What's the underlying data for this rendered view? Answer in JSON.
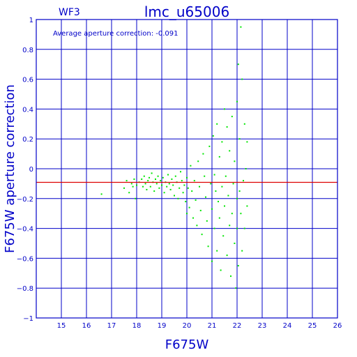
{
  "chart_data": {
    "type": "scatter",
    "title": "lmc_u65006",
    "corner_label": "WF3",
    "annotation": "Average aperture correction:  -0.091",
    "xlabel": "F675W",
    "ylabel": "F675W aperture correction",
    "xlim": [
      14,
      26
    ],
    "ylim": [
      -1,
      1
    ],
    "xticks": [
      15,
      16,
      17,
      18,
      19,
      20,
      21,
      22,
      23,
      24,
      25,
      26
    ],
    "yticks": [
      -1,
      -0.8,
      -0.6,
      -0.4,
      -0.2,
      0,
      0.2,
      0.4,
      0.6,
      0.8,
      1
    ],
    "ytick_labels": [
      "−1",
      "−0.8",
      "−0.6",
      "−0.4",
      "−0.2",
      "0",
      "0.2",
      "0.4",
      "0.6",
      "0.8",
      "1"
    ],
    "grid": true,
    "average_line": {
      "y": -0.091
    },
    "colors": {
      "axes": "#0000c8",
      "points": "#00e600",
      "average_line": "#dd0000"
    },
    "series": [
      {
        "points": [
          [
            16.6,
            -0.17
          ],
          [
            17.5,
            -0.13
          ],
          [
            17.6,
            -0.08
          ],
          [
            17.7,
            -0.16
          ],
          [
            17.8,
            -0.1
          ],
          [
            17.85,
            -0.12
          ],
          [
            17.9,
            -0.07
          ],
          [
            17.95,
            -0.2
          ],
          [
            18.0,
            -0.11
          ],
          [
            18.1,
            -0.09
          ],
          [
            18.2,
            -0.07
          ],
          [
            18.25,
            -0.12
          ],
          [
            18.3,
            -0.05
          ],
          [
            18.35,
            -0.1
          ],
          [
            18.4,
            -0.14
          ],
          [
            18.45,
            -0.08
          ],
          [
            18.5,
            -0.06
          ],
          [
            18.55,
            -0.12
          ],
          [
            18.6,
            -0.03
          ],
          [
            18.65,
            -0.09
          ],
          [
            18.7,
            -0.15
          ],
          [
            18.75,
            -0.07
          ],
          [
            18.8,
            -0.1
          ],
          [
            18.85,
            -0.05
          ],
          [
            18.9,
            -0.13
          ],
          [
            18.95,
            -0.08
          ],
          [
            19.0,
            -0.11
          ],
          [
            19.05,
            -0.06
          ],
          [
            19.1,
            -0.16
          ],
          [
            19.15,
            -0.09
          ],
          [
            19.2,
            -0.12
          ],
          [
            19.25,
            -0.04
          ],
          [
            19.3,
            -0.1
          ],
          [
            19.35,
            -0.14
          ],
          [
            19.4,
            -0.07
          ],
          [
            19.45,
            -0.11
          ],
          [
            19.5,
            -0.18
          ],
          [
            19.55,
            -0.05
          ],
          [
            19.6,
            -0.09
          ],
          [
            19.65,
            -0.2
          ],
          [
            19.7,
            -0.13
          ],
          [
            19.75,
            -0.02
          ],
          [
            19.8,
            -0.08
          ],
          [
            19.85,
            -0.16
          ],
          [
            19.9,
            -0.11
          ],
          [
            19.95,
            -0.22
          ],
          [
            20.0,
            -0.06
          ],
          [
            20.0,
            -0.3
          ],
          [
            20.05,
            -0.13
          ],
          [
            20.1,
            -0.26
          ],
          [
            20.15,
            0.02
          ],
          [
            20.2,
            -0.15
          ],
          [
            20.25,
            -0.33
          ],
          [
            20.3,
            -0.08
          ],
          [
            20.35,
            -0.21
          ],
          [
            20.4,
            -0.38
          ],
          [
            20.45,
            0.05
          ],
          [
            20.5,
            -0.12
          ],
          [
            20.55,
            -0.28
          ],
          [
            20.6,
            -0.44
          ],
          [
            20.65,
            0.1
          ],
          [
            20.7,
            -0.05
          ],
          [
            20.75,
            -0.19
          ],
          [
            20.8,
            -0.35
          ],
          [
            20.85,
            -0.52
          ],
          [
            20.9,
            0.15
          ],
          [
            20.95,
            -0.1
          ],
          [
            21.0,
            -0.27
          ],
          [
            21.0,
            -0.62
          ],
          [
            21.05,
            0.22
          ],
          [
            21.1,
            -0.04
          ],
          [
            21.1,
            -0.4
          ],
          [
            21.15,
            -0.15
          ],
          [
            21.2,
            0.3
          ],
          [
            21.2,
            -0.55
          ],
          [
            21.25,
            -0.22
          ],
          [
            21.3,
            0.08
          ],
          [
            21.3,
            -0.33
          ],
          [
            21.35,
            -0.68
          ],
          [
            21.4,
            0.18
          ],
          [
            21.4,
            -0.12
          ],
          [
            21.45,
            -0.45
          ],
          [
            21.5,
            0.4
          ],
          [
            21.5,
            -0.25
          ],
          [
            21.55,
            -0.05
          ],
          [
            21.6,
            -0.58
          ],
          [
            21.6,
            0.28
          ],
          [
            21.65,
            -0.18
          ],
          [
            21.7,
            -0.38
          ],
          [
            21.7,
            0.12
          ],
          [
            21.75,
            -0.72
          ],
          [
            21.8,
            -0.3
          ],
          [
            21.8,
            0.35
          ],
          [
            21.85,
            -0.1
          ],
          [
            21.9,
            -0.5
          ],
          [
            21.9,
            0.05
          ],
          [
            21.95,
            -0.8
          ],
          [
            22.0,
            -0.2
          ],
          [
            22.0,
            0.45
          ],
          [
            22.0,
            -0.4
          ],
          [
            22.05,
            0.7
          ],
          [
            22.05,
            -0.65
          ],
          [
            22.1,
            0.2
          ],
          [
            22.1,
            -0.15
          ],
          [
            22.15,
            -0.3
          ],
          [
            22.15,
            0.95
          ],
          [
            22.2,
            -0.55
          ],
          [
            22.2,
            0.6
          ],
          [
            22.25,
            -0.08
          ],
          [
            22.3,
            0.3
          ],
          [
            22.3,
            -0.4
          ],
          [
            22.35,
            0.0
          ],
          [
            22.4,
            0.18
          ],
          [
            22.4,
            -0.25
          ]
        ]
      }
    ]
  }
}
